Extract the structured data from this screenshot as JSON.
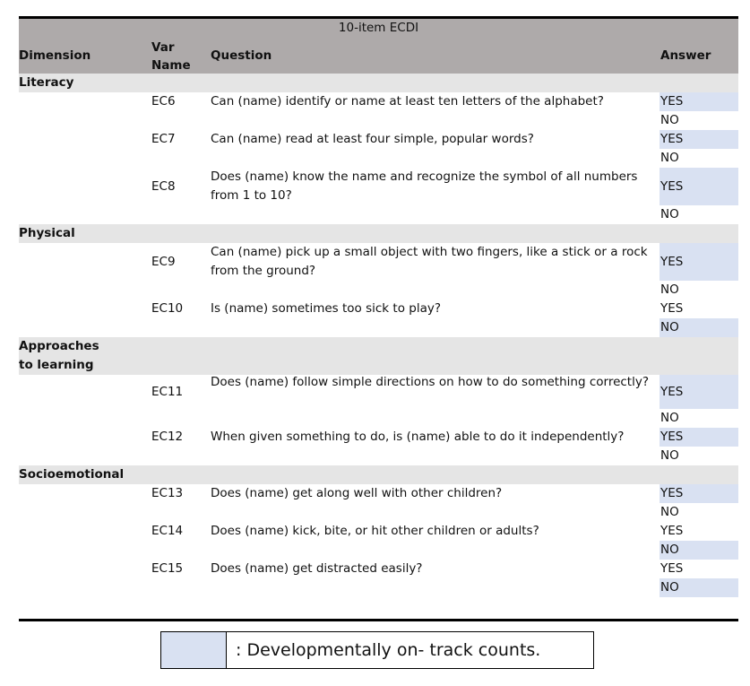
{
  "table": {
    "title": "10-item ECDI",
    "headers": {
      "dimension": "Dimension",
      "var_name": "Var Name",
      "question": "Question",
      "answer": "Answer"
    },
    "sections": [
      {
        "name": "Literacy",
        "items": [
          {
            "var": "EC6",
            "question": "Can (name) identify or name at least ten letters of the alphabet?",
            "answers": [
              {
                "text": "YES",
                "on_track": true
              },
              {
                "text": "NO",
                "on_track": false
              }
            ]
          },
          {
            "var": "EC7",
            "question": "Can (name) read at least four simple, popular words?",
            "answers": [
              {
                "text": "YES",
                "on_track": true
              },
              {
                "text": "NO",
                "on_track": false
              }
            ]
          },
          {
            "var": "EC8",
            "question": "Does (name) know the name and recognize the symbol of all numbers from 1 to 10?",
            "answers": [
              {
                "text": "YES",
                "on_track": true
              },
              {
                "text": "NO",
                "on_track": false
              }
            ]
          }
        ]
      },
      {
        "name": "Physical",
        "items": [
          {
            "var": "EC9",
            "question": "Can (name) pick up a small object with two fingers, like a stick or a rock from the ground?",
            "answers": [
              {
                "text": "YES",
                "on_track": true
              },
              {
                "text": "NO",
                "on_track": false
              }
            ]
          },
          {
            "var": "EC10",
            "question": "Is (name) sometimes too sick to play?",
            "answers": [
              {
                "text": "YES",
                "on_track": false
              },
              {
                "text": "NO",
                "on_track": true
              }
            ]
          }
        ]
      },
      {
        "name": "Approaches to learning",
        "items": [
          {
            "var": "EC11",
            "question": "Does (name) follow simple directions on how to do something correctly?",
            "answers": [
              {
                "text": "YES",
                "on_track": true
              },
              {
                "text": "NO",
                "on_track": false
              }
            ]
          },
          {
            "var": "EC12",
            "question": "When given something to do, is (name) able to do it independently?",
            "answers": [
              {
                "text": "YES",
                "on_track": true
              },
              {
                "text": "NO",
                "on_track": false
              }
            ]
          }
        ]
      },
      {
        "name": "Socioemotional",
        "items": [
          {
            "var": "EC13",
            "question": "Does (name) get along well with other children?",
            "answers": [
              {
                "text": "YES",
                "on_track": true
              },
              {
                "text": "NO",
                "on_track": false
              }
            ]
          },
          {
            "var": "EC14",
            "question": "Does (name) kick, bite, or hit other children or adults?",
            "answers": [
              {
                "text": "YES",
                "on_track": false
              },
              {
                "text": "NO",
                "on_track": true
              }
            ]
          },
          {
            "var": "EC15",
            "question": "Does (name) get distracted easily?",
            "answers": [
              {
                "text": "YES",
                "on_track": false
              },
              {
                "text": "NO",
                "on_track": true
              }
            ]
          }
        ]
      }
    ]
  },
  "legend": {
    "text": ": Developmentally on- track counts.",
    "color": "#d9e1f2"
  }
}
